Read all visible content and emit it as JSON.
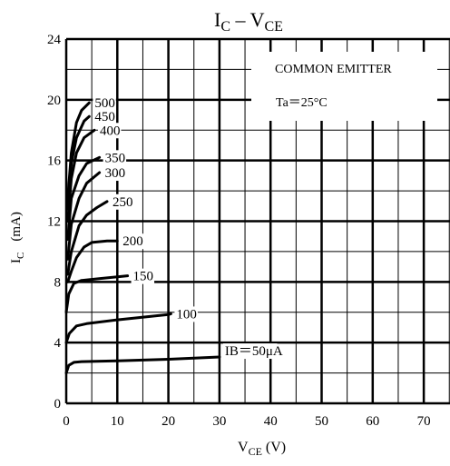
{
  "chart_data": {
    "type": "line",
    "title": "IC – VCE",
    "title_parts": {
      "main_1": "I",
      "sub_1": "C",
      "mid": " – V",
      "sub_2": "CE"
    },
    "xlabel_parts": {
      "main": "V",
      "sub": "CE",
      "unit": " (V)"
    },
    "ylabel_parts": {
      "main": "I",
      "sub": "C",
      "unit": "(mA)"
    },
    "xlim": [
      0,
      75
    ],
    "ylim": [
      0,
      24
    ],
    "x_ticks": [
      0,
      10,
      20,
      30,
      40,
      50,
      60,
      70
    ],
    "y_ticks": [
      0,
      4,
      8,
      12,
      16,
      20,
      24
    ],
    "grid": true,
    "annotations": {
      "mode": "COMMON EMITTER",
      "temperature": "Ta＝25°C"
    },
    "series": [
      {
        "label": "IB＝50μA",
        "points": [
          [
            0,
            2.0
          ],
          [
            0.5,
            2.5
          ],
          [
            1.5,
            2.7
          ],
          [
            3,
            2.75
          ],
          [
            10,
            2.8
          ],
          [
            20,
            2.9
          ],
          [
            30,
            3.05
          ]
        ]
      },
      {
        "label": "100",
        "points": [
          [
            0,
            4.0
          ],
          [
            0.6,
            4.6
          ],
          [
            2,
            5.1
          ],
          [
            4,
            5.25
          ],
          [
            10,
            5.5
          ],
          [
            20,
            5.85
          ],
          [
            20.5,
            5.9
          ]
        ]
      },
      {
        "label": "150",
        "points": [
          [
            0,
            6.0
          ],
          [
            0.5,
            7.2
          ],
          [
            1.5,
            7.9
          ],
          [
            3,
            8.1
          ],
          [
            6,
            8.2
          ],
          [
            12,
            8.4
          ]
        ]
      },
      {
        "label": "200",
        "points": [
          [
            0.3,
            8.0
          ],
          [
            1,
            8.7
          ],
          [
            2,
            9.6
          ],
          [
            3.5,
            10.3
          ],
          [
            5,
            10.6
          ],
          [
            8,
            10.7
          ],
          [
            10,
            10.7
          ]
        ]
      },
      {
        "label": "250",
        "points": [
          [
            0.3,
            8.5
          ],
          [
            1,
            10.0
          ],
          [
            2.5,
            11.7
          ],
          [
            4,
            12.4
          ],
          [
            6,
            12.9
          ],
          [
            8,
            13.3
          ]
        ]
      },
      {
        "label": "300",
        "points": [
          [
            0.3,
            9.5
          ],
          [
            1,
            11.8
          ],
          [
            2.5,
            13.5
          ],
          [
            4,
            14.5
          ],
          [
            6.5,
            15.2
          ]
        ]
      },
      {
        "label": "350",
        "points": [
          [
            0.3,
            10.8
          ],
          [
            1,
            13.5
          ],
          [
            2.5,
            15.0
          ],
          [
            4,
            15.8
          ],
          [
            6.5,
            16.2
          ]
        ]
      },
      {
        "label": "400",
        "points": [
          [
            0.3,
            12.0
          ],
          [
            1,
            14.8
          ],
          [
            2,
            16.5
          ],
          [
            3.5,
            17.5
          ],
          [
            5.5,
            18.0
          ]
        ]
      },
      {
        "label": "450",
        "points": [
          [
            0.3,
            12.8
          ],
          [
            1,
            15.8
          ],
          [
            2,
            17.5
          ],
          [
            3.5,
            18.6
          ],
          [
            4.5,
            18.9
          ]
        ]
      },
      {
        "label": "500",
        "points": [
          [
            0.3,
            13.5
          ],
          [
            1,
            16.5
          ],
          [
            2,
            18.5
          ],
          [
            3,
            19.3
          ],
          [
            4.5,
            19.8
          ]
        ]
      }
    ]
  }
}
